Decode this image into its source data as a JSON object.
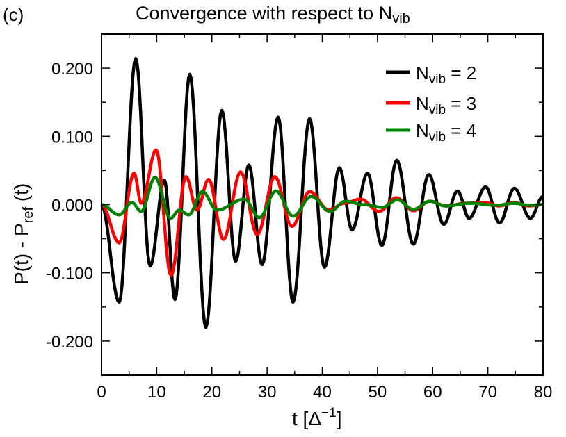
{
  "chart_data": {
    "type": "line",
    "panel_label": "(c)",
    "title": "Convergence with respect to N",
    "title_sub": "vib",
    "xlabel": "t [Δ",
    "xlabel_sup": "−1",
    "xlabel_end": "]",
    "ylabel": "P(t) - P",
    "ylabel_sub": "ref",
    "ylabel_end": " (t)",
    "xlim": [
      0,
      80
    ],
    "ylim": [
      -0.25,
      0.25
    ],
    "xticks": [
      0,
      10,
      20,
      30,
      40,
      50,
      60,
      70,
      80
    ],
    "xtick_labels": [
      "0",
      "10",
      "20",
      "30",
      "40",
      "50",
      "60",
      "70",
      "80"
    ],
    "yticks": [
      -0.2,
      -0.1,
      0,
      0.1,
      0.2
    ],
    "ytick_labels": [
      "-0.200",
      "-0.100",
      "0.000",
      "0.100",
      "0.200"
    ],
    "grid": false,
    "legend_position": "top-right",
    "series": [
      {
        "name": "N",
        "sub": "vib",
        "suffix": " = 2",
        "color": "#000000",
        "points": [
          [
            0,
            0
          ],
          [
            3.2,
            -0.143
          ],
          [
            6.2,
            0.214
          ],
          [
            8.8,
            -0.09
          ],
          [
            11.4,
            0.036
          ],
          [
            13.3,
            -0.139
          ],
          [
            16.0,
            0.191
          ],
          [
            18.9,
            -0.18
          ],
          [
            21.8,
            0.138
          ],
          [
            24.3,
            -0.083
          ],
          [
            26.7,
            0.058
          ],
          [
            29.1,
            -0.088
          ],
          [
            32.0,
            0.128
          ],
          [
            34.7,
            -0.143
          ],
          [
            37.7,
            0.126
          ],
          [
            40.4,
            -0.092
          ],
          [
            43.1,
            0.054
          ],
          [
            45.4,
            -0.037
          ],
          [
            48.2,
            0.046
          ],
          [
            50.8,
            -0.06
          ],
          [
            53.5,
            0.065
          ],
          [
            56.5,
            -0.058
          ],
          [
            59.3,
            0.044
          ],
          [
            62.0,
            -0.029
          ],
          [
            64.5,
            0.02
          ],
          [
            66.6,
            -0.02
          ],
          [
            69.6,
            0.026
          ],
          [
            72.1,
            -0.027
          ],
          [
            74.8,
            0.024
          ],
          [
            77.7,
            -0.02
          ],
          [
            80,
            0.012
          ]
        ]
      },
      {
        "name": "N",
        "sub": "vib",
        "suffix": " = 3",
        "color": "#ff0000",
        "points": [
          [
            0,
            0
          ],
          [
            3.2,
            -0.056
          ],
          [
            5.9,
            0.046
          ],
          [
            7.2,
            0.002
          ],
          [
            9.9,
            0.08
          ],
          [
            12.6,
            -0.104
          ],
          [
            15.3,
            0.041
          ],
          [
            17.3,
            -0.008
          ],
          [
            19.4,
            0.037
          ],
          [
            22.1,
            -0.051
          ],
          [
            25.2,
            0.048
          ],
          [
            28.2,
            -0.044
          ],
          [
            31.4,
            0.041
          ],
          [
            34.5,
            -0.032
          ],
          [
            37.7,
            0.019
          ],
          [
            41.2,
            -0.008
          ],
          [
            44.0,
            0.002
          ],
          [
            46.9,
            0.008
          ],
          [
            50.3,
            -0.01
          ],
          [
            53.4,
            0.01
          ],
          [
            56.5,
            -0.009
          ],
          [
            59.5,
            0.005
          ],
          [
            62.5,
            -0.002
          ],
          [
            66.0,
            0.002
          ],
          [
            69.4,
            0.003
          ],
          [
            72.0,
            -0.002
          ],
          [
            74.7,
            0.003
          ],
          [
            77.5,
            -0.002
          ],
          [
            80,
            0
          ]
        ]
      },
      {
        "name": "N",
        "sub": "vib",
        "suffix": " = 4",
        "color": "#008000",
        "points": [
          [
            0,
            0
          ],
          [
            3.2,
            -0.015
          ],
          [
            5.5,
            0.003
          ],
          [
            7.2,
            -0.01
          ],
          [
            9.7,
            0.04
          ],
          [
            12.5,
            -0.02
          ],
          [
            14.1,
            -0.008
          ],
          [
            15.8,
            -0.015
          ],
          [
            18.3,
            0.019
          ],
          [
            20.9,
            -0.008
          ],
          [
            25.9,
            0.008
          ],
          [
            28.6,
            -0.019
          ],
          [
            31.6,
            0.02
          ],
          [
            34.7,
            -0.017
          ],
          [
            38.0,
            0.012
          ],
          [
            41.4,
            -0.01
          ],
          [
            44.2,
            0.005
          ],
          [
            47.5,
            0.0
          ],
          [
            50.9,
            -0.004
          ],
          [
            53.6,
            0.007
          ],
          [
            56.5,
            -0.007
          ],
          [
            59.5,
            0.005
          ],
          [
            62.3,
            -0.002
          ],
          [
            66.8,
            0.002
          ],
          [
            71.5,
            -0.001
          ],
          [
            74.8,
            0.002
          ],
          [
            77.5,
            -0.001
          ],
          [
            80,
            0
          ]
        ]
      }
    ]
  }
}
